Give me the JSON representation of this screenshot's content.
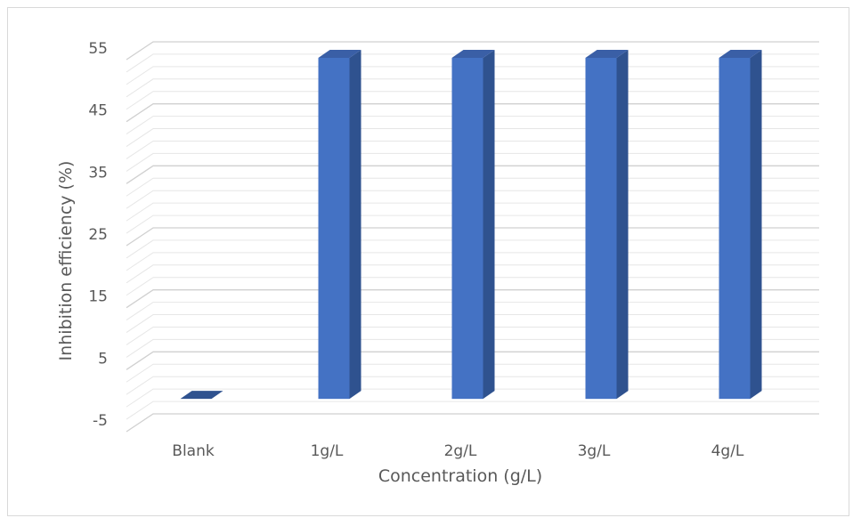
{
  "chart_data": {
    "type": "bar",
    "categories": [
      "Blank",
      "1g/L",
      "2g/L",
      "3g/L",
      "4g/L"
    ],
    "values": [
      0,
      55,
      55,
      55,
      55
    ],
    "y_ticks": [
      "-5",
      "5",
      "15",
      "25",
      "35",
      "45",
      "55"
    ],
    "xlabel": "Concentration (g/L)",
    "ylabel": "Inhibition efficiency (%)",
    "ylim": [
      -5,
      55
    ],
    "grid": true,
    "colors": {
      "bar_front": "#4472c4",
      "bar_side": "#2f528f",
      "bar_top": "#3a5fa6",
      "grid": "#d9d9d9",
      "text": "#595959"
    }
  }
}
